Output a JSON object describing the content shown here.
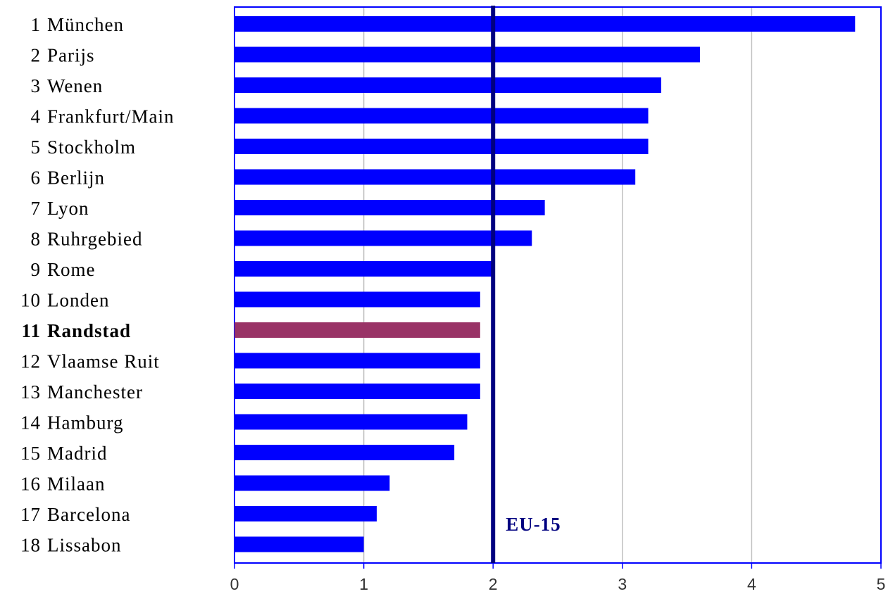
{
  "chart_data": {
    "type": "barh",
    "ranks": [
      1,
      2,
      3,
      4,
      5,
      6,
      7,
      8,
      9,
      10,
      11,
      12,
      13,
      14,
      15,
      16,
      17,
      18
    ],
    "categories": [
      "München",
      "Parijs",
      "Wenen",
      "Frankfurt/Main",
      "Stockholm",
      "Berlijn",
      "Lyon",
      "Ruhrgebied",
      "Rome",
      "Londen",
      "Randstad",
      "Vlaamse Ruit",
      "Manchester",
      "Hamburg",
      "Madrid",
      "Milaan",
      "Barcelona",
      "Lissabon"
    ],
    "values": [
      4.8,
      3.6,
      3.3,
      3.2,
      3.2,
      3.1,
      2.4,
      2.3,
      2.0,
      1.9,
      1.9,
      1.9,
      1.9,
      1.8,
      1.7,
      1.2,
      1.1,
      1.0
    ],
    "color": "#0000ff",
    "colors": [
      "#0000ff",
      "#0000ff",
      "#0000ff",
      "#0000ff",
      "#0000ff",
      "#0000ff",
      "#0000ff",
      "#0000ff",
      "#0000ff",
      "#0000ff",
      "#993366",
      "#0000ff",
      "#0000ff",
      "#0000ff",
      "#0000ff",
      "#0000ff",
      "#0000ff",
      "#0000ff"
    ],
    "xlim": [
      0,
      5
    ],
    "xticks": [
      0,
      1,
      2,
      3,
      4,
      5
    ],
    "grid": true,
    "reference_line": {
      "value": 2,
      "label": "EU-15",
      "color": "#000080"
    }
  }
}
